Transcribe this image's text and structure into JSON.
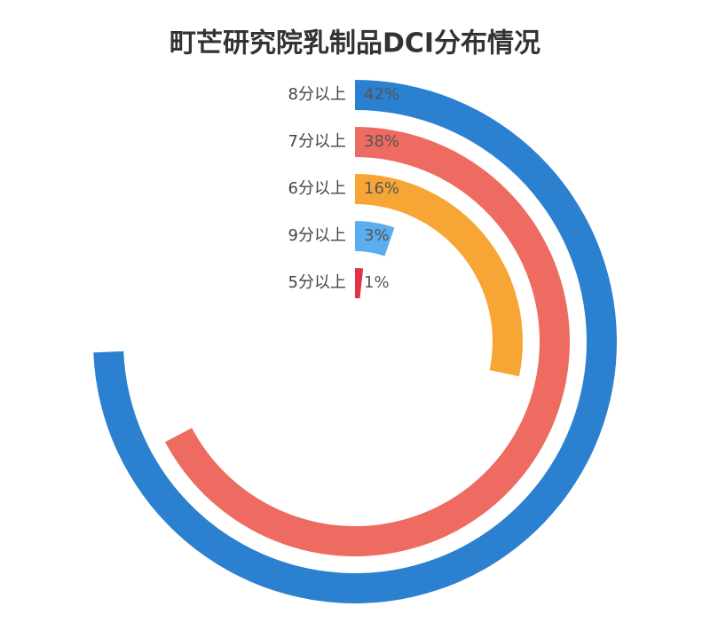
{
  "chart_data": {
    "type": "radial-bar",
    "title": "町芒研究院乳制品DCI分布情况",
    "categories": [
      "8分以上",
      "7分以上",
      "6分以上",
      "9分以上",
      "5分以上"
    ],
    "series": [
      {
        "values": [
          42,
          38,
          16,
          3,
          1
        ],
        "value_labels": [
          "42%",
          "38%",
          "16%",
          "3%",
          "1%"
        ],
        "colors": [
          "#2b80d0",
          "#ee6b61",
          "#f7a535",
          "#5aaef0",
          "#e0334a"
        ]
      }
    ],
    "rlim": [
      0,
      56.5
    ]
  }
}
